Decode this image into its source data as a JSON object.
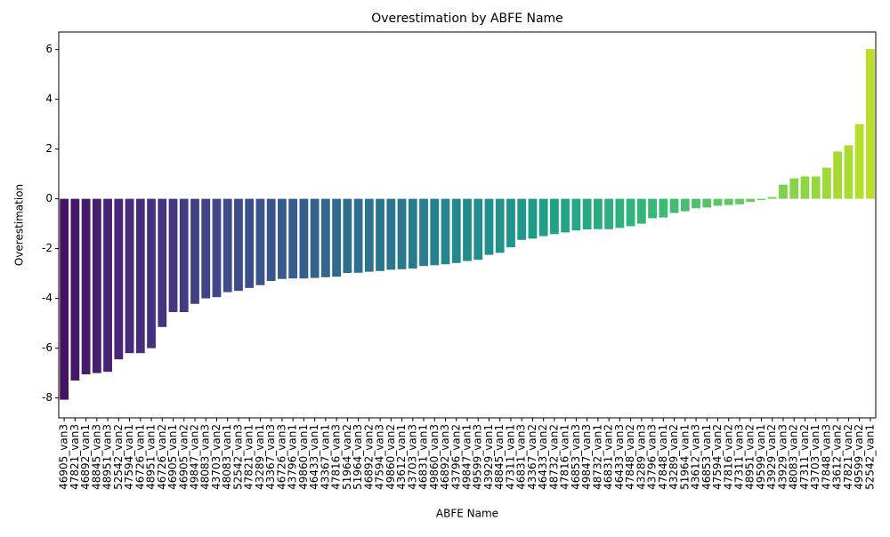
{
  "chart_data": {
    "type": "bar",
    "title": "Overestimation by ABFE Name",
    "xlabel": "ABFE Name",
    "ylabel": "Overestimation",
    "categories": [
      "46905_van3",
      "47821_van3",
      "46892_van1",
      "48845_van3",
      "48951_van3",
      "52542_van2",
      "47594_van1",
      "46726_van1",
      "48951_van1",
      "46726_van2",
      "46905_van1",
      "46905_van2",
      "49847_van2",
      "48083_van3",
      "43703_van2",
      "48083_van1",
      "52542_van3",
      "47821_van1",
      "43289_van1",
      "43367_van3",
      "46726_van3",
      "43796_van1",
      "49860_van1",
      "46433_van1",
      "43367_van1",
      "47816_van3",
      "51964_van2",
      "51964_van3",
      "46892_van2",
      "47594_van3",
      "49860_van2",
      "43612_van1",
      "43703_van3",
      "46831_van1",
      "49860_van3",
      "46892_van3",
      "43796_van2",
      "49847_van1",
      "49599_van3",
      "43929_van1",
      "48845_van1",
      "47311_van1",
      "46831_van3",
      "43367_van2",
      "46433_van2",
      "48732_van2",
      "47816_van1",
      "46853_van3",
      "49847_van3",
      "48732_van1",
      "46831_van2",
      "46433_van3",
      "47848_van2",
      "43289_van3",
      "43796_van3",
      "47848_van1",
      "43289_van2",
      "51964_van1",
      "43612_van3",
      "46853_van1",
      "47594_van2",
      "47816_van2",
      "47311_van3",
      "48951_van2",
      "49599_van1",
      "43929_van2",
      "43929_van3",
      "48083_van2",
      "47311_van2",
      "43703_van1",
      "47848_van3",
      "43612_van2",
      "47821_van2",
      "49599_van2",
      "52542_van1"
    ],
    "values": [
      -8.07,
      -7.3,
      -7.05,
      -7.0,
      -6.95,
      -6.45,
      -6.2,
      -6.2,
      -6.0,
      -5.15,
      -4.55,
      -4.55,
      -4.22,
      -4.0,
      -3.95,
      -3.75,
      -3.7,
      -3.58,
      -3.47,
      -3.3,
      -3.22,
      -3.2,
      -3.2,
      -3.18,
      -3.15,
      -3.13,
      -2.98,
      -2.97,
      -2.93,
      -2.9,
      -2.85,
      -2.83,
      -2.8,
      -2.7,
      -2.67,
      -2.63,
      -2.58,
      -2.5,
      -2.45,
      -2.25,
      -2.17,
      -1.95,
      -1.65,
      -1.6,
      -1.5,
      -1.42,
      -1.35,
      -1.27,
      -1.23,
      -1.22,
      -1.22,
      -1.17,
      -1.1,
      -1.0,
      -0.78,
      -0.75,
      -0.57,
      -0.5,
      -0.38,
      -0.35,
      -0.28,
      -0.25,
      -0.22,
      -0.12,
      -0.05,
      0.07,
      0.57,
      0.82,
      0.9,
      0.9,
      1.25,
      1.9,
      2.15,
      3.0,
      6.02
    ],
    "colormap": "viridis",
    "ylim": [
      -8.8,
      6.7
    ],
    "yticks": [
      -8,
      -6,
      -4,
      -2,
      0,
      2,
      4,
      6
    ],
    "grid": false
  }
}
